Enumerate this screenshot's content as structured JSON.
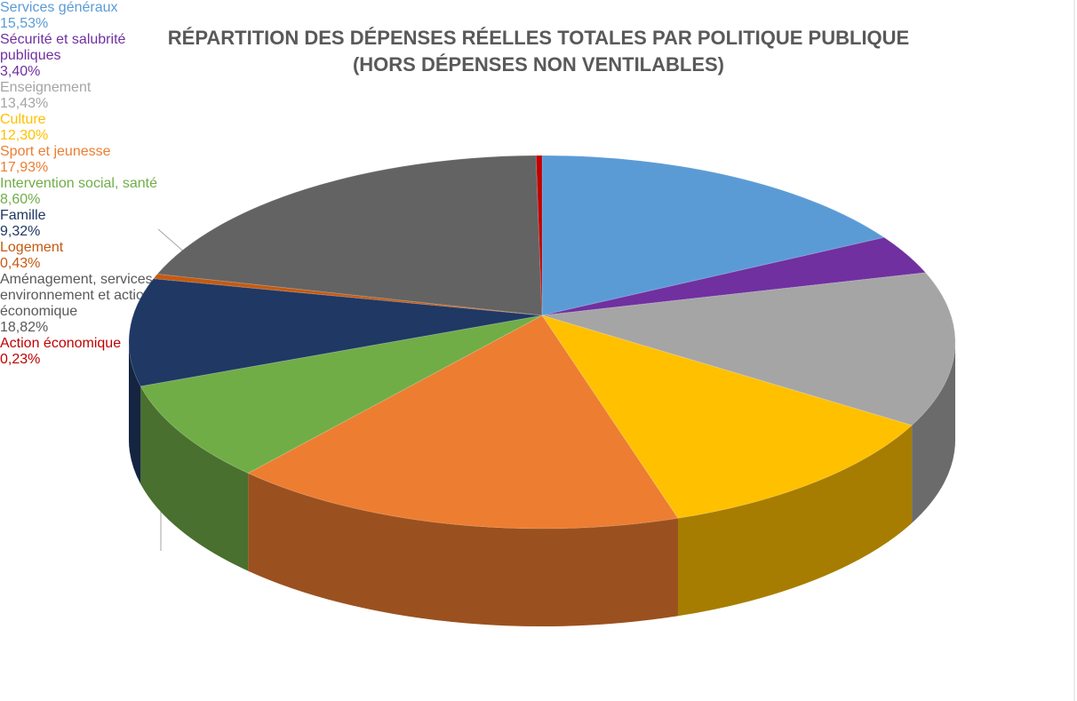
{
  "chart_data": {
    "type": "pie",
    "title": "RÉPARTITION DES DÉPENSES RÉELLES TOTALES PAR POLITIQUE PUBLIQUE",
    "subtitle": "(HORS DÉPENSES NON VENTILABLES)",
    "categories": [
      "Services généraux",
      "Sécurité et salubrité publiques",
      "Enseignement",
      "Culture",
      "Sport et jeunesse",
      "Intervention social, santé",
      "Famille",
      "Logement",
      "Aménagement, services urbains, environnement et action économique",
      "Action économique"
    ],
    "values": [
      15.53,
      3.4,
      13.43,
      12.3,
      17.93,
      8.6,
      9.32,
      0.43,
      18.82,
      0.23
    ],
    "value_labels": [
      "15,53%",
      "3,40%",
      "13,43%",
      "12,30%",
      "17,93%",
      "8,60%",
      "9,32%",
      "0,43%",
      "18,82%",
      "0,23%"
    ],
    "colors": [
      "#5b9bd5",
      "#7030a0",
      "#a5a5a5",
      "#ffc000",
      "#ed7d31",
      "#70ad47",
      "#1f3864",
      "#c55a11",
      "#636363",
      "#c00000"
    ]
  }
}
